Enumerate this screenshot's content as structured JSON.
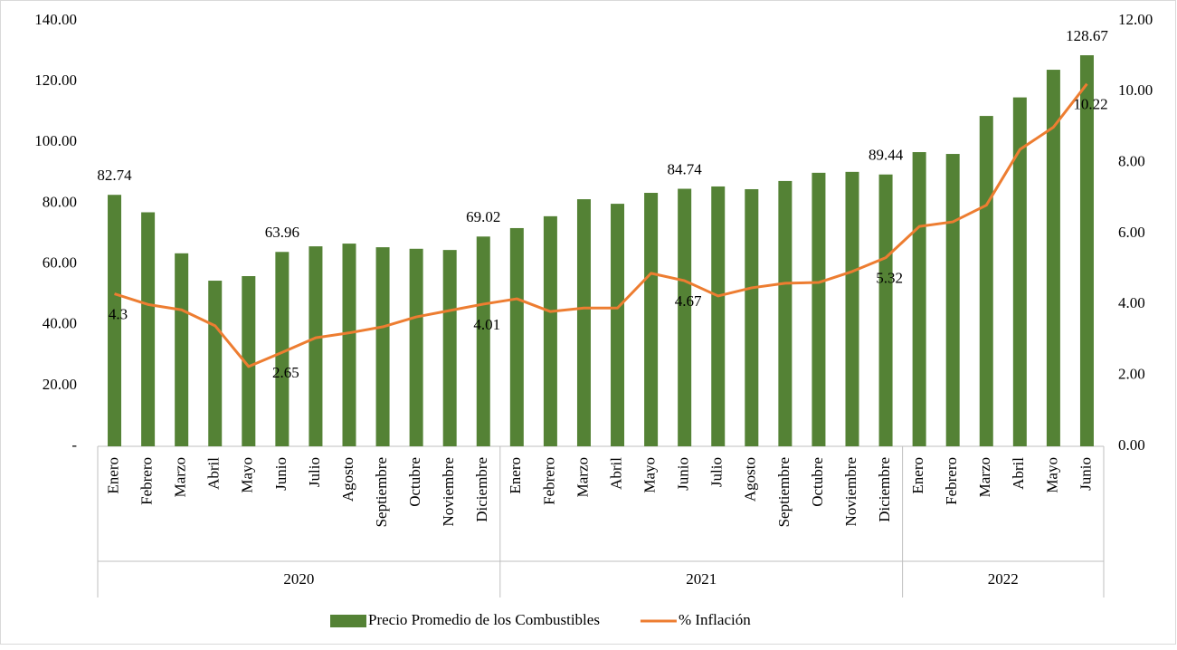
{
  "chart_data": {
    "type": "bar_line",
    "groups": [
      {
        "name": "2020",
        "categories": [
          "Enero",
          "Febrero",
          "Marzo",
          "Abril",
          "Mayo",
          "Junio",
          "Julio",
          "Agosto",
          "Septiembre",
          "Octubre",
          "Noviembre",
          "Diciembre"
        ]
      },
      {
        "name": "2021",
        "categories": [
          "Enero",
          "Febrero",
          "Marzo",
          "Abril",
          "Mayo",
          "Junio",
          "Julio",
          "Agosto",
          "Septiembre",
          "Octubre",
          "Noviembre",
          "Diciembre"
        ]
      },
      {
        "name": "2022",
        "categories": [
          "Enero",
          "Febrero",
          "Marzo",
          "Abril",
          "Mayo",
          "Junio"
        ]
      }
    ],
    "series": [
      {
        "name": "Precio Promedio de los Combustibles",
        "type": "bar",
        "color": "#548235",
        "values": [
          82.74,
          77,
          63.5,
          54.5,
          56,
          63.96,
          65.8,
          66.7,
          65.5,
          65,
          64.6,
          69.02,
          71.8,
          75.7,
          81.3,
          79.8,
          83.4,
          84.74,
          85.5,
          84.6,
          87.3,
          90,
          90.3,
          89.44,
          96.8,
          96.2,
          108.7,
          114.8,
          123.9,
          128.67
        ],
        "value_labels": [
          "82.74",
          null,
          null,
          null,
          null,
          "63.96",
          null,
          null,
          null,
          null,
          null,
          "69.02",
          null,
          null,
          null,
          null,
          null,
          "84.74",
          null,
          null,
          null,
          null,
          null,
          "89.44",
          null,
          null,
          null,
          null,
          null,
          "128.67"
        ]
      },
      {
        "name": "% Inflación",
        "type": "line",
        "axis": "y2",
        "color": "#ed7d31",
        "values": [
          4.3,
          4.0,
          3.85,
          3.4,
          2.25,
          2.65,
          3.06,
          3.2,
          3.37,
          3.65,
          3.83,
          4.01,
          4.16,
          3.8,
          3.9,
          3.9,
          4.88,
          4.67,
          4.24,
          4.47,
          4.6,
          4.62,
          4.93,
          5.32,
          6.2,
          6.33,
          6.8,
          8.37,
          9.0,
          10.22
        ],
        "value_labels": [
          "4.3",
          null,
          null,
          null,
          null,
          "2.65",
          null,
          null,
          null,
          null,
          null,
          "4.01",
          null,
          null,
          null,
          null,
          null,
          "4.67",
          null,
          null,
          null,
          null,
          null,
          "5.32",
          null,
          null,
          null,
          null,
          null,
          "10.22"
        ]
      }
    ],
    "ylim": [
      0,
      140
    ],
    "yticks": [
      {
        "value": 0,
        "label": "-"
      },
      {
        "value": 20,
        "label": "20.00"
      },
      {
        "value": 40,
        "label": "40.00"
      },
      {
        "value": 60,
        "label": "60.00"
      },
      {
        "value": 80,
        "label": "80.00"
      },
      {
        "value": 100,
        "label": "100.00"
      },
      {
        "value": 120,
        "label": "120.00"
      },
      {
        "value": 140,
        "label": "140.00"
      }
    ],
    "y2lim": [
      0,
      12
    ],
    "y2ticks": [
      {
        "value": 0,
        "label": "0.00"
      },
      {
        "value": 2,
        "label": "2.00"
      },
      {
        "value": 4,
        "label": "4.00"
      },
      {
        "value": 6,
        "label": "6.00"
      },
      {
        "value": 8,
        "label": "8.00"
      },
      {
        "value": 10,
        "label": "10.00"
      },
      {
        "value": 12,
        "label": "12.00"
      }
    ],
    "legend": "bottom"
  }
}
